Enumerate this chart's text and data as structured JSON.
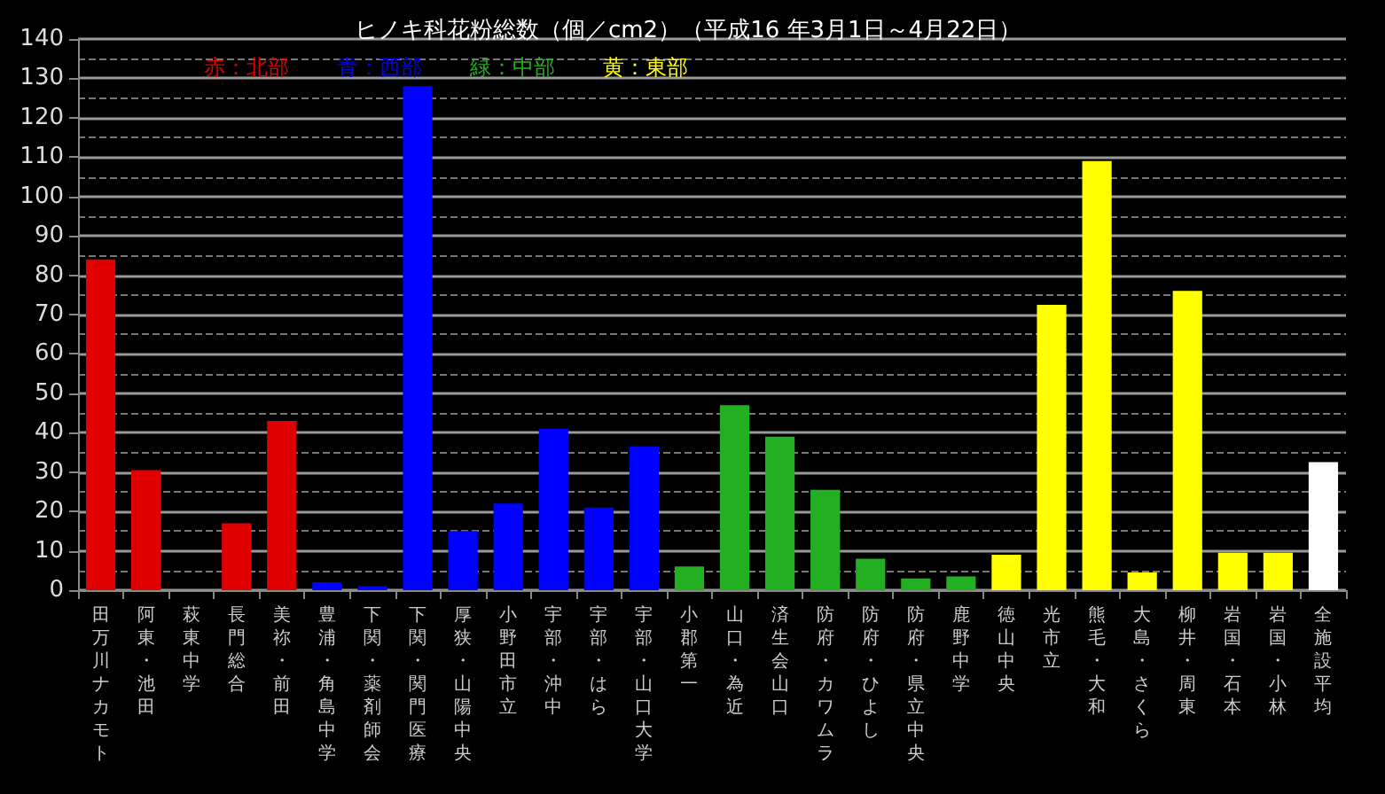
{
  "chart_data": {
    "type": "bar",
    "title": "ヒノキ科花粉総数（個／cm2）（平成16 年3月1日～4月22日）",
    "categories": [
      "田万川ナカモト",
      "阿東・池田",
      "萩東中学",
      "長門総合",
      "美祢・前田",
      "豊浦・角島中学",
      "下関・薬剤師会",
      "下関・関門医療",
      "厚狭・山陽中央",
      "小野田市立",
      "宇部・沖中",
      "宇部・はら",
      "宇部・山口大学",
      "小郡第一",
      "山口・為近",
      "済生会山口",
      "防府・カワムラ",
      "防府・ひよし",
      "防府・県立中央",
      "鹿野中学",
      "徳山中央",
      "光市立",
      "熊毛・大和",
      "大島・さくら",
      "柳井・周東",
      "岩国・石本",
      "岩国・小林",
      "全施設平均"
    ],
    "series": [
      {
        "name": "赤：北部",
        "color": "#e00000",
        "values": [
          84,
          30.5,
          0,
          17,
          43,
          null,
          null,
          null,
          null,
          null,
          null,
          null,
          null,
          null,
          null,
          null,
          null,
          null,
          null,
          null,
          null,
          null,
          null,
          null,
          null,
          null,
          null,
          null
        ]
      },
      {
        "name": "青：西部",
        "color": "#0000ff",
        "values": [
          null,
          null,
          null,
          null,
          null,
          2,
          1,
          128,
          15,
          22,
          41,
          21,
          36.5,
          null,
          null,
          null,
          null,
          null,
          null,
          null,
          null,
          null,
          null,
          null,
          null,
          null,
          null,
          null
        ]
      },
      {
        "name": "緑：中部",
        "color": "#22b022",
        "values": [
          null,
          null,
          null,
          null,
          null,
          null,
          null,
          null,
          null,
          null,
          null,
          null,
          null,
          6,
          47,
          39,
          25.5,
          8,
          3,
          3.5,
          null,
          null,
          null,
          null,
          null,
          null,
          null,
          null
        ]
      },
      {
        "name": "黄：東部",
        "color": "#ffff00",
        "values": [
          null,
          null,
          null,
          null,
          null,
          null,
          null,
          null,
          null,
          null,
          null,
          null,
          null,
          null,
          null,
          null,
          null,
          null,
          null,
          null,
          9,
          72.5,
          109,
          4.5,
          76,
          9.5,
          9.5,
          null
        ]
      },
      {
        "color": "#ffffff",
        "values": [
          null,
          null,
          null,
          null,
          null,
          null,
          null,
          null,
          null,
          null,
          null,
          null,
          null,
          null,
          null,
          null,
          null,
          null,
          null,
          null,
          null,
          null,
          null,
          null,
          null,
          null,
          null,
          32.5
        ]
      }
    ],
    "ylim": [
      0,
      140
    ],
    "yticks": [
      0,
      10,
      20,
      30,
      40,
      50,
      60,
      70,
      80,
      90,
      100,
      110,
      120,
      130,
      140
    ],
    "grid": "y",
    "legend": "top"
  }
}
